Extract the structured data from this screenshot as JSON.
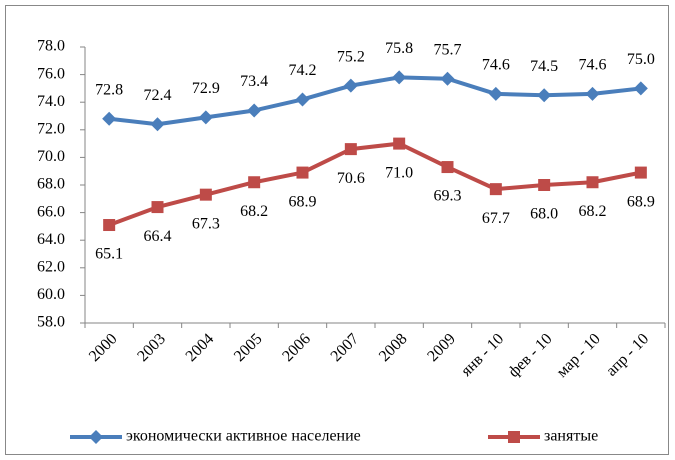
{
  "chart_data": {
    "type": "line",
    "categories": [
      "2000",
      "2003",
      "2004",
      "2005",
      "2006",
      "2007",
      "2008",
      "2009",
      "янв - 10",
      "фев - 10",
      "мар - 10",
      "апр - 10"
    ],
    "series": [
      {
        "name": "экономически активное население",
        "color": "#4a7ebb",
        "marker": "diamond",
        "label_position": "above",
        "values": [
          72.8,
          72.4,
          72.9,
          73.4,
          74.2,
          75.2,
          75.8,
          75.7,
          74.6,
          74.5,
          74.6,
          75.0
        ],
        "value_labels": [
          "72.8",
          "72.4",
          "72.9",
          "73.4",
          "74.2",
          "75.2",
          "75.8",
          "75.7",
          "74.6",
          "74.5",
          "74.6",
          "75.0"
        ]
      },
      {
        "name": "занятые",
        "color": "#be4b48",
        "marker": "square",
        "label_position": "below",
        "values": [
          65.1,
          66.4,
          67.3,
          68.2,
          68.9,
          70.6,
          71.0,
          69.3,
          67.7,
          68.0,
          68.2,
          68.9
        ],
        "value_labels": [
          "65.1",
          "66.4",
          "67.3",
          "68.2",
          "68.9",
          "70.6",
          "71.0",
          "69.3",
          "67.7",
          "68.0",
          "68.2",
          "68.9"
        ]
      }
    ],
    "ylim": [
      58,
      78
    ],
    "yticks": [
      {
        "value": 58,
        "label": "58.0"
      },
      {
        "value": 60,
        "label": "60.0"
      },
      {
        "value": 62,
        "label": "62.0"
      },
      {
        "value": 64,
        "label": "64.0"
      },
      {
        "value": 66,
        "label": "66.0"
      },
      {
        "value": 68,
        "label": "68.0"
      },
      {
        "value": 70,
        "label": "70.0"
      },
      {
        "value": 72,
        "label": "72.0"
      },
      {
        "value": 74,
        "label": "74.0"
      },
      {
        "value": 76,
        "label": "76.0"
      },
      {
        "value": 78,
        "label": "78.0"
      }
    ],
    "grid": false,
    "legend": "bottom"
  }
}
